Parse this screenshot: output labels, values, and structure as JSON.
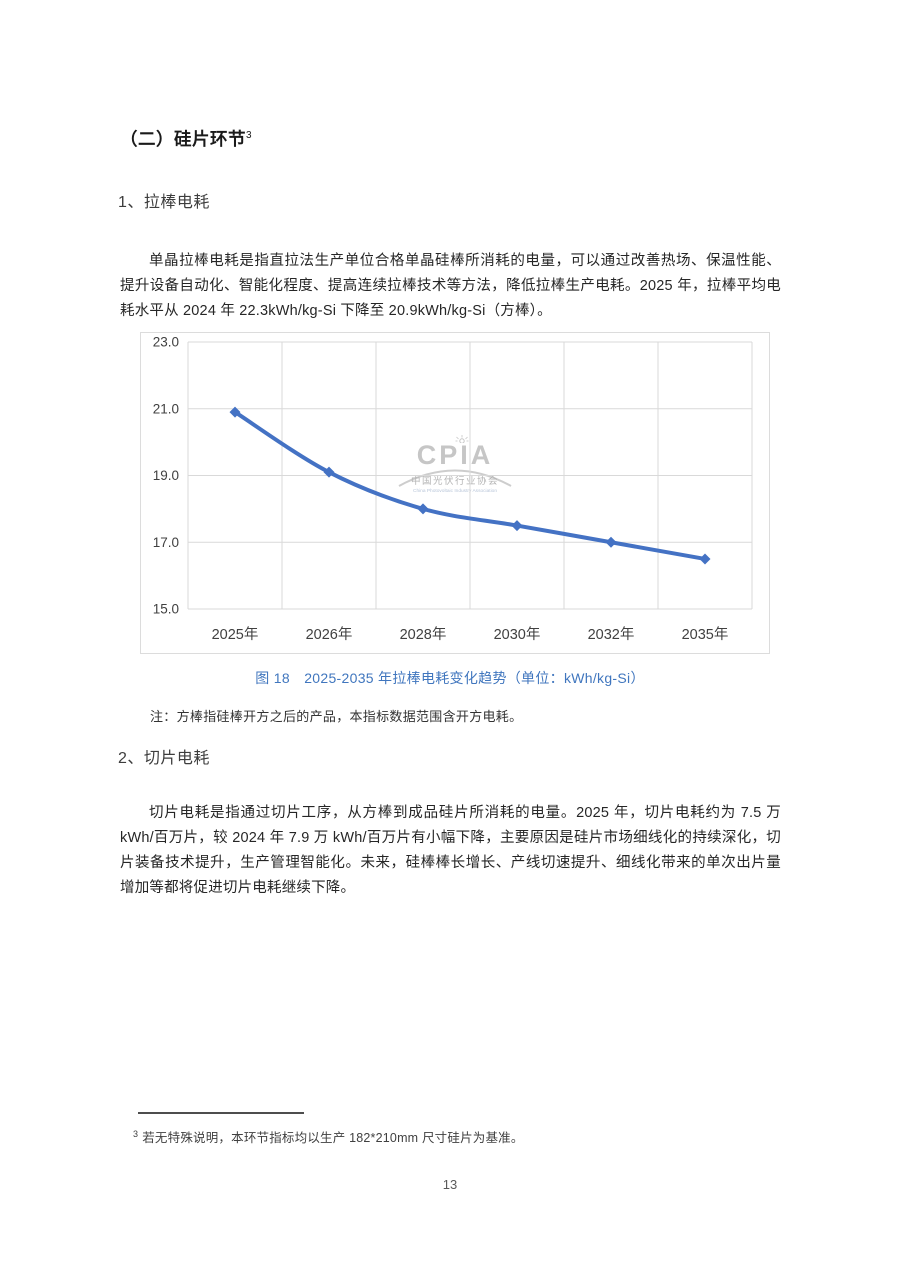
{
  "document": {
    "heading": {
      "text": "（二）硅片环节",
      "footnote_ref": "3"
    },
    "sections": [
      {
        "title": "1、拉棒电耗",
        "paragraph": "单晶拉棒电耗是指直拉法生产单位合格单晶硅棒所消耗的电量，可以通过改善热场、保温性能、提升设备自动化、智能化程度、提高连续拉棒技术等方法，降低拉棒生产电耗。2025 年，拉棒平均电耗水平从 2024 年 22.3kWh/kg-Si 下降至 20.9kWh/kg-Si（方棒）。"
      },
      {
        "title": "2、切片电耗",
        "paragraph": "切片电耗是指通过切片工序，从方棒到成品硅片所消耗的电量。2025 年，切片电耗约为 7.5 万 kWh/百万片，较 2024 年 7.9 万 kWh/百万片有小幅下降，主要原因是硅片市场细线化的持续深化，切片装备技术提升，生产管理智能化。未来，硅棒棒长增长、产线切速提升、细线化带来的单次出片量增加等都将促进切片电耗继续下降。"
      }
    ],
    "figure": {
      "caption": "图 18　2025-2035 年拉棒电耗变化趋势（单位：kWh/kg-Si）",
      "note": "注：方棒指硅棒开方之后的产品，本指标数据范围含开方电耗。"
    },
    "watermark": {
      "logo": "CPIA",
      "org_cn": "中国光伏行业协会",
      "org_en": "China Photovoltaic Industry Association"
    },
    "footnote": {
      "marker": "3",
      "text": "若无特殊说明，本环节指标均以生产 182*210mm 尺寸硅片为基准。"
    },
    "page_number": "13"
  },
  "chart_data": {
    "type": "line",
    "title": "2025-2035 年拉棒电耗变化趋势",
    "unit": "kWh/kg-Si",
    "categories": [
      "2025年",
      "2026年",
      "2028年",
      "2030年",
      "2032年",
      "2035年"
    ],
    "values": [
      20.9,
      19.1,
      18.0,
      17.5,
      17.0,
      16.5
    ],
    "ylim": [
      15.0,
      23.0
    ],
    "yticks": [
      15.0,
      17.0,
      19.0,
      21.0,
      23.0
    ],
    "ytick_labels": [
      "15.0",
      "17.0",
      "19.0",
      "21.0",
      "23.0"
    ],
    "grid": true,
    "legend": "none",
    "line_color": "#4472C4",
    "grid_color": "#d9d9d9",
    "tick_label_color": "#404040",
    "marker": "diamond"
  }
}
